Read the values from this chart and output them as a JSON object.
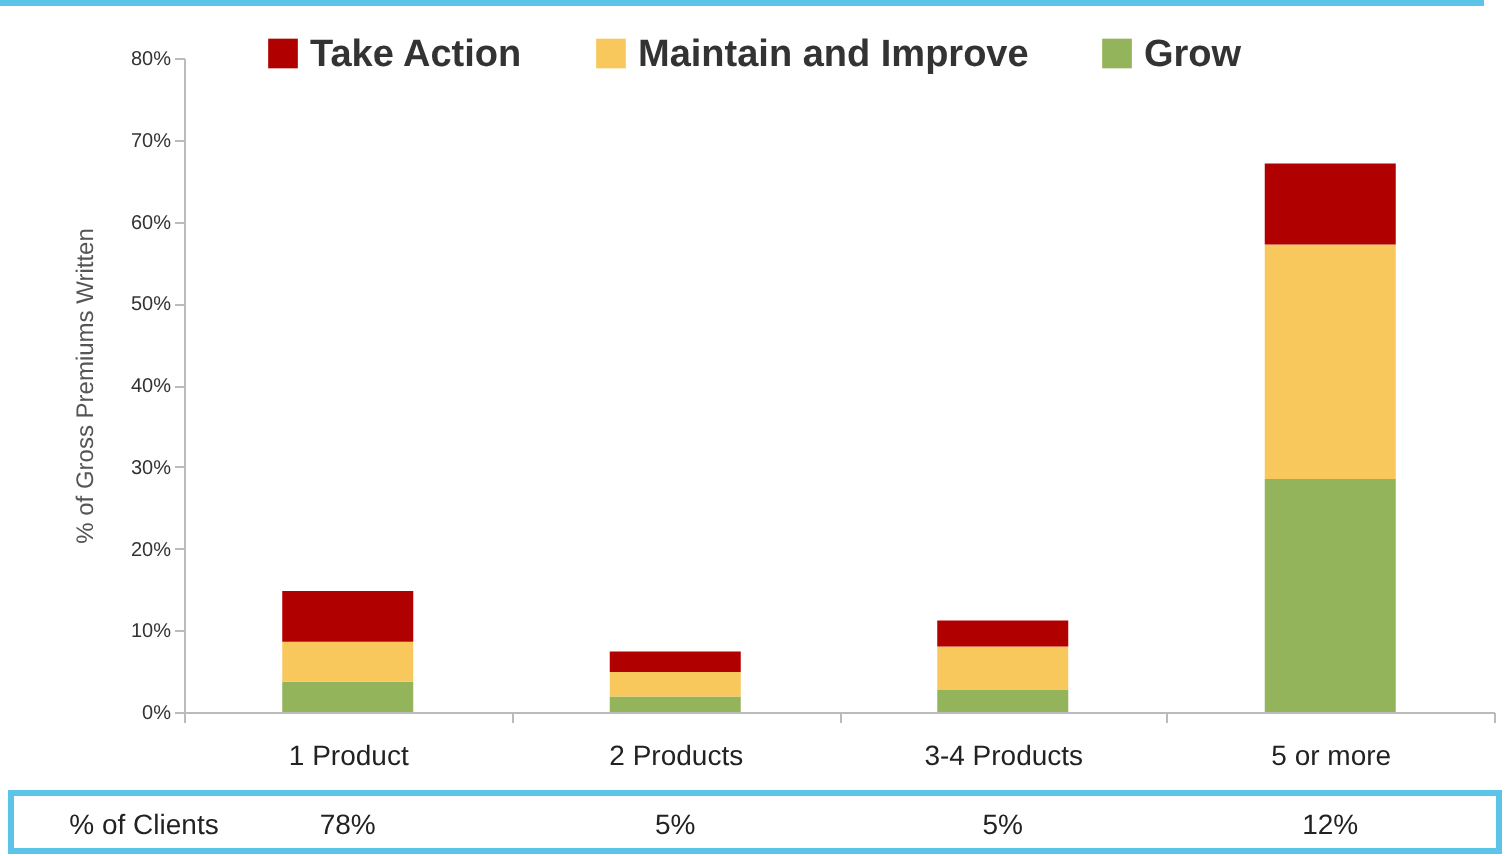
{
  "chart_data": {
    "type": "bar",
    "stacked": true,
    "ylabel": "% of Gross Premiums Written",
    "categories": [
      "1 Product",
      "2 Products",
      "3-4 Products",
      "5 or more"
    ],
    "series": [
      {
        "name": "Grow",
        "color": "#93b45a",
        "values": [
          3.7,
          1.9,
          2.7,
          28.5
        ]
      },
      {
        "name": "Maintain and Improve",
        "color": "#f8c85c",
        "values": [
          4.9,
          3.0,
          5.3,
          28.7
        ]
      },
      {
        "name": "Take Action",
        "color": "#b00000",
        "values": [
          6.2,
          2.5,
          3.2,
          9.9
        ]
      }
    ],
    "ylim": [
      0,
      80
    ],
    "yticks": [
      {
        "value": 0,
        "label": "0%"
      },
      {
        "value": 10,
        "label": "10%"
      },
      {
        "value": 20,
        "label": "20%"
      },
      {
        "value": 30,
        "label": "30%"
      },
      {
        "value": 40,
        "label": "40%"
      },
      {
        "value": 50,
        "label": "50%"
      },
      {
        "value": 60,
        "label": "60%"
      },
      {
        "value": 70,
        "label": "70%"
      },
      {
        "value": 80,
        "label": "80%"
      }
    ],
    "legend": "top",
    "grid": false,
    "annotations": [
      "% of Clients",
      "78%",
      "5%",
      "5%",
      "12%"
    ]
  }
}
